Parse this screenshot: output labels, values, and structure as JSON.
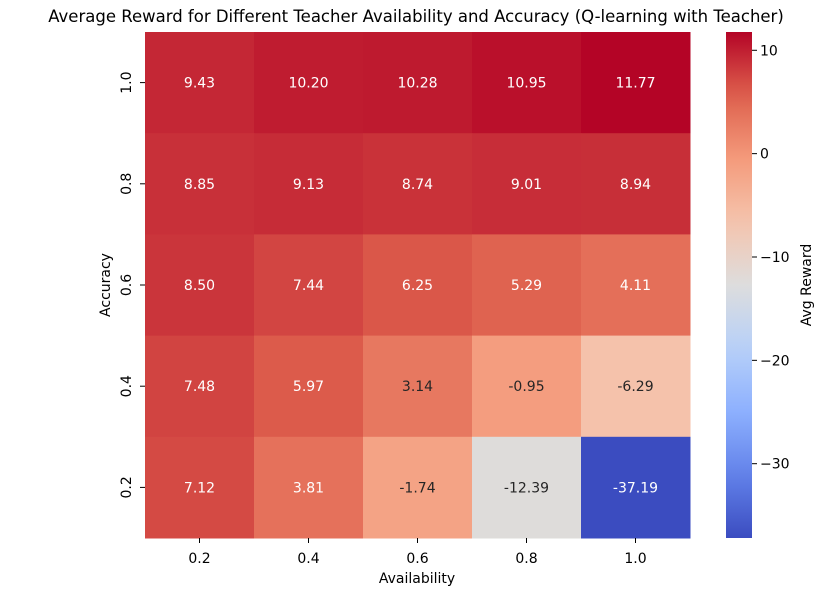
{
  "chart_data": {
    "type": "heatmap",
    "title": "Average Reward for Different Teacher Availability and Accuracy (Q-learning with Teacher)",
    "xlabel": "Availability",
    "ylabel": "Accuracy",
    "x": [
      "0.2",
      "0.4",
      "0.6",
      "0.8",
      "1.0"
    ],
    "y": [
      "1.0",
      "0.8",
      "0.6",
      "0.4",
      "0.2"
    ],
    "values": [
      [
        9.43,
        10.2,
        10.28,
        10.95,
        11.77
      ],
      [
        8.85,
        9.13,
        8.74,
        9.01,
        8.94
      ],
      [
        8.5,
        7.44,
        6.25,
        5.29,
        4.11
      ],
      [
        7.48,
        5.97,
        3.14,
        -0.95,
        -6.29
      ],
      [
        7.12,
        3.81,
        -1.74,
        -12.39,
        -37.19
      ]
    ],
    "value_labels": [
      [
        "9.43",
        "10.20",
        "10.28",
        "10.95",
        "11.77"
      ],
      [
        "8.85",
        "9.13",
        "8.74",
        "9.01",
        "8.94"
      ],
      [
        "8.50",
        "7.44",
        "6.25",
        "5.29",
        "4.11"
      ],
      [
        "7.48",
        "5.97",
        "3.14",
        "-0.95",
        "-6.29"
      ],
      [
        "7.12",
        "3.81",
        "-1.74",
        "-12.39",
        "-37.19"
      ]
    ],
    "colormap": "coolwarm",
    "vmin": -37.19,
    "vmax": 11.77,
    "colorbar": {
      "label": "Avg Reward",
      "ticks": [
        10,
        0,
        -10,
        -20,
        -30
      ],
      "tick_labels": [
        "10",
        "0",
        "−10",
        "−20",
        "−30"
      ]
    }
  }
}
